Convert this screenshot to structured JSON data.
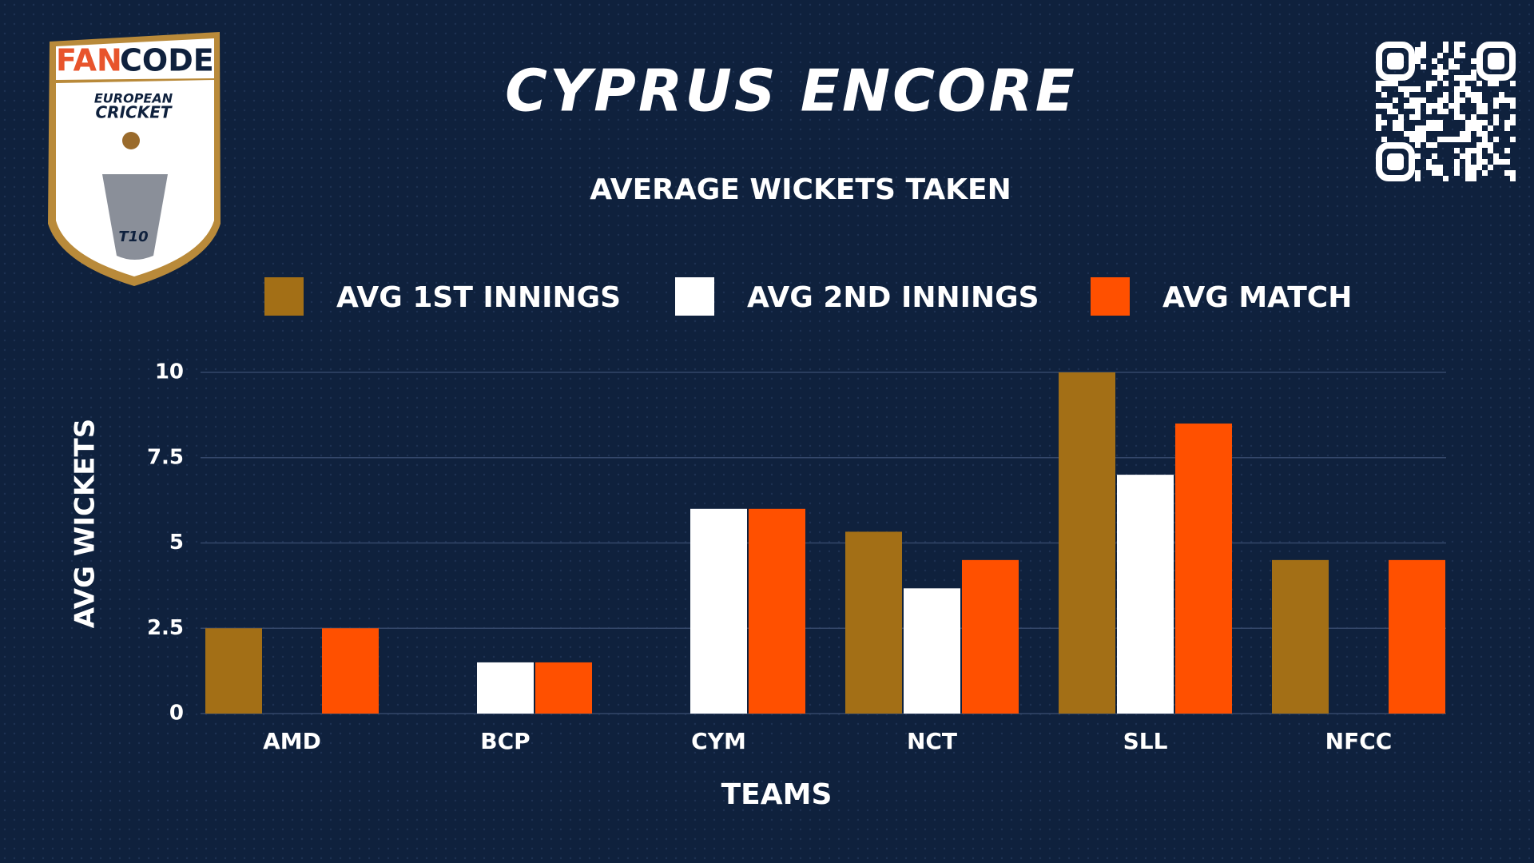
{
  "logo": {
    "brand_parts": [
      "FAN",
      "CODE"
    ],
    "line1": "EUROPEAN",
    "line2": "CRICKET",
    "badge": "T10"
  },
  "chart_data": {
    "type": "bar",
    "title": "CYPRUS ENCORE",
    "subtitle": "AVERAGE WICKETS TAKEN",
    "x_label": "TEAMS",
    "y_label": "AVG WICKETS",
    "categories": [
      "AMD",
      "BCP",
      "CYM",
      "NCT",
      "SLL",
      "NFCC"
    ],
    "series": [
      {
        "name": "AVG 1ST INNINGS",
        "color": "#a36f16",
        "values": [
          2.5,
          0,
          0,
          5.33,
          10,
          4.5
        ]
      },
      {
        "name": "AVG 2ND INNINGS",
        "color": "#ffffff",
        "values": [
          0,
          1.5,
          6,
          3.67,
          7,
          0
        ]
      },
      {
        "name": "AVG MATCH",
        "color": "#ff5000",
        "values": [
          2.5,
          1.5,
          6,
          4.5,
          8.5,
          4.5
        ]
      }
    ],
    "ylim": [
      0,
      10
    ],
    "yticks": [
      0,
      2.5,
      5,
      7.5,
      10
    ],
    "grid": true
  }
}
